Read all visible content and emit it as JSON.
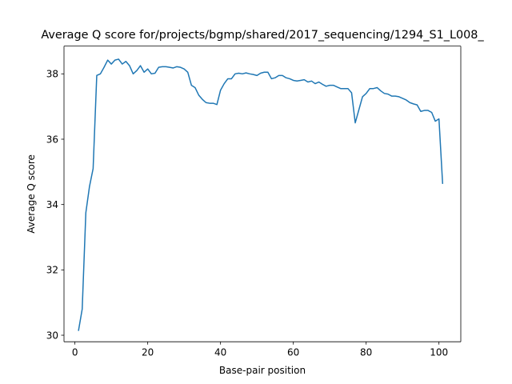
{
  "chart_data": {
    "type": "line",
    "title": "Average Q score for/projects/bgmp/shared/2017_sequencing/1294_S1_L008_",
    "xlabel": "Base-pair position",
    "ylabel": "Average Q score",
    "xlim": [
      -3.0,
      106.0
    ],
    "ylim": [
      29.8,
      38.85
    ],
    "xticks": [
      0,
      20,
      40,
      60,
      80,
      100
    ],
    "yticks": [
      30,
      32,
      34,
      36,
      38
    ],
    "grid": false,
    "legend": "none",
    "series": [
      {
        "color": "#1f77b4",
        "x": [
          1,
          2,
          3,
          4,
          5,
          6,
          7,
          8,
          9,
          10,
          11,
          12,
          13,
          14,
          15,
          16,
          17,
          18,
          19,
          20,
          21,
          22,
          23,
          24,
          25,
          26,
          27,
          28,
          29,
          30,
          31,
          32,
          33,
          34,
          35,
          36,
          37,
          38,
          39,
          40,
          41,
          42,
          43,
          44,
          45,
          46,
          47,
          48,
          49,
          50,
          51,
          52,
          53,
          54,
          55,
          56,
          57,
          58,
          59,
          60,
          61,
          62,
          63,
          64,
          65,
          66,
          67,
          68,
          69,
          70,
          71,
          72,
          73,
          74,
          75,
          76,
          77,
          78,
          79,
          80,
          81,
          82,
          83,
          84,
          85,
          86,
          87,
          88,
          89,
          90,
          91,
          92,
          93,
          94,
          95,
          96,
          97,
          98,
          99,
          100,
          101
        ],
        "values": [
          30.15,
          30.8,
          33.75,
          34.55,
          35.1,
          37.95,
          38.0,
          38.2,
          38.42,
          38.3,
          38.42,
          38.45,
          38.3,
          38.38,
          38.25,
          38.0,
          38.1,
          38.25,
          38.05,
          38.15,
          38.0,
          38.02,
          38.2,
          38.22,
          38.22,
          38.2,
          38.18,
          38.22,
          38.2,
          38.15,
          38.05,
          37.65,
          37.58,
          37.35,
          37.22,
          37.12,
          37.1,
          37.1,
          37.06,
          37.5,
          37.7,
          37.85,
          37.85,
          38.0,
          38.02,
          38.0,
          38.03,
          38.0,
          37.98,
          37.95,
          38.02,
          38.05,
          38.05,
          37.85,
          37.88,
          37.95,
          37.95,
          37.88,
          37.85,
          37.8,
          37.78,
          37.8,
          37.82,
          37.75,
          37.78,
          37.7,
          37.75,
          37.68,
          37.62,
          37.65,
          37.65,
          37.6,
          37.55,
          37.55,
          37.55,
          37.42,
          36.5,
          36.9,
          37.3,
          37.4,
          37.55,
          37.55,
          37.58,
          37.48,
          37.4,
          37.38,
          37.32,
          37.32,
          37.3,
          37.25,
          37.2,
          37.12,
          37.08,
          37.05,
          36.85,
          36.88,
          36.88,
          36.82,
          36.55,
          36.62,
          34.65
        ]
      }
    ]
  }
}
